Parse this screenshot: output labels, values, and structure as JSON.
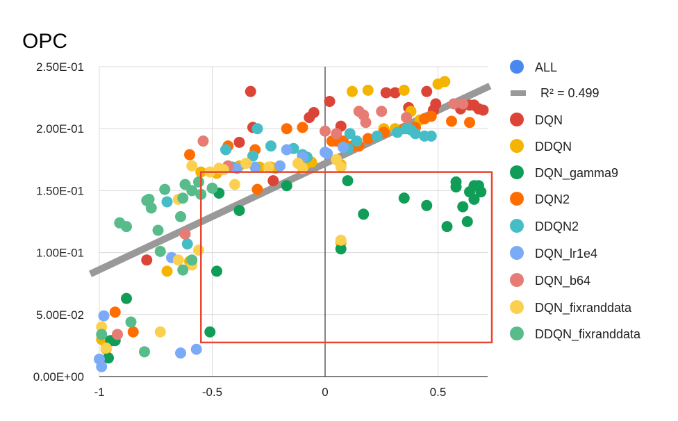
{
  "chart_data": {
    "type": "scatter",
    "title": "OPC",
    "xlabel": "",
    "ylabel": "",
    "xlim": [
      -1,
      0.72
    ],
    "ylim": [
      0,
      0.25
    ],
    "xticks": [
      -1,
      -0.5,
      0,
      0.5
    ],
    "xtick_labels": [
      "-1",
      "-0.5",
      "0",
      "0.5"
    ],
    "yticks": [
      0,
      0.05,
      0.1,
      0.15,
      0.2,
      0.25
    ],
    "ytick_labels": [
      "0.00E+00",
      "5.00E-02",
      "1.00E-01",
      "1.50E-01",
      "2.00E-01",
      "2.50E-01"
    ],
    "grid": true,
    "legend_position": "right",
    "trendline": {
      "label": "R² = 0.499",
      "slope": 0.0857,
      "intercept": 0.1719,
      "color": "#999999"
    },
    "highlight_box": {
      "x": [
        -0.55,
        0.75
      ],
      "y": [
        0.0275,
        0.165
      ],
      "color": "#e8462e"
    },
    "series": [
      {
        "name": "ALL",
        "color": "#4a87f0",
        "points": []
      },
      {
        "name": "DQN",
        "color": "#db4437",
        "points": [
          [
            -0.33,
            0.23
          ],
          [
            -0.07,
            0.209
          ],
          [
            -0.05,
            0.213
          ],
          [
            0.02,
            0.222
          ],
          [
            0.07,
            0.202
          ],
          [
            0.27,
            0.229
          ],
          [
            0.31,
            0.229
          ],
          [
            0.45,
            0.23
          ],
          [
            0.37,
            0.217
          ],
          [
            0.49,
            0.22
          ],
          [
            0.6,
            0.216
          ],
          [
            0.66,
            0.219
          ],
          [
            0.68,
            0.216
          ],
          [
            0.7,
            0.215
          ],
          [
            0.64,
            0.219
          ],
          [
            -0.94,
            0.029
          ],
          [
            -0.98,
            0.029
          ],
          [
            -0.79,
            0.094
          ],
          [
            -0.23,
            0.158
          ],
          [
            -0.38,
            0.189
          ],
          [
            -0.32,
            0.201
          ],
          [
            0.48,
            0.215
          ]
        ]
      },
      {
        "name": "DDQN",
        "color": "#f4b400",
        "points": [
          [
            0.12,
            0.23
          ],
          [
            0.19,
            0.231
          ],
          [
            0.35,
            0.231
          ],
          [
            0.5,
            0.236
          ],
          [
            0.53,
            0.238
          ],
          [
            0.26,
            0.2
          ],
          [
            0.31,
            0.2
          ],
          [
            0.38,
            0.214
          ],
          [
            0.42,
            0.207
          ],
          [
            0.07,
            0.171
          ],
          [
            -0.38,
            0.17
          ],
          [
            -0.29,
            0.169
          ],
          [
            -0.24,
            0.169
          ],
          [
            -0.22,
            0.168
          ],
          [
            -0.1,
            0.17
          ],
          [
            -0.08,
            0.172
          ],
          [
            -0.06,
            0.173
          ],
          [
            -0.55,
            0.165
          ],
          [
            -0.48,
            0.164
          ],
          [
            -0.7,
            0.085
          ],
          [
            -0.6,
            0.093
          ],
          [
            0.07,
            0.108
          ],
          [
            -0.99,
            0.03
          ],
          [
            -0.97,
            0.022
          ]
        ]
      },
      {
        "name": "DQN_gamma9",
        "color": "#0f9d58",
        "points": [
          [
            -0.47,
            0.148
          ],
          [
            -0.38,
            0.134
          ],
          [
            -0.17,
            0.154
          ],
          [
            0.1,
            0.158
          ],
          [
            0.17,
            0.131
          ],
          [
            0.35,
            0.144
          ],
          [
            0.45,
            0.138
          ],
          [
            0.54,
            0.121
          ],
          [
            0.58,
            0.157
          ],
          [
            0.58,
            0.153
          ],
          [
            0.61,
            0.137
          ],
          [
            0.63,
            0.125
          ],
          [
            0.64,
            0.149
          ],
          [
            0.66,
            0.143
          ],
          [
            0.66,
            0.154
          ],
          [
            0.69,
            0.149
          ],
          [
            0.68,
            0.154
          ],
          [
            0.07,
            0.103
          ],
          [
            -0.48,
            0.085
          ],
          [
            -0.51,
            0.036
          ],
          [
            -0.88,
            0.063
          ],
          [
            -0.95,
            0.029
          ],
          [
            -0.93,
            0.029
          ],
          [
            -0.96,
            0.015
          ]
        ]
      },
      {
        "name": "DQN2",
        "color": "#ff6d01",
        "points": [
          [
            -0.6,
            0.179
          ],
          [
            -0.43,
            0.186
          ],
          [
            -0.31,
            0.183
          ],
          [
            -0.17,
            0.2
          ],
          [
            -0.1,
            0.201
          ],
          [
            0.03,
            0.19
          ],
          [
            0.05,
            0.19
          ],
          [
            0.08,
            0.19
          ],
          [
            0.12,
            0.186
          ],
          [
            0.15,
            0.186
          ],
          [
            0.19,
            0.192
          ],
          [
            0.26,
            0.197
          ],
          [
            0.35,
            0.2
          ],
          [
            0.4,
            0.201
          ],
          [
            0.44,
            0.208
          ],
          [
            0.47,
            0.21
          ],
          [
            0.56,
            0.206
          ],
          [
            0.64,
            0.205
          ],
          [
            -0.3,
            0.151
          ],
          [
            -0.93,
            0.052
          ],
          [
            -0.85,
            0.036
          ]
        ]
      },
      {
        "name": "DDQN2",
        "color": "#46bdc6",
        "points": [
          [
            -0.3,
            0.2
          ],
          [
            0.11,
            0.196
          ],
          [
            0.14,
            0.19
          ],
          [
            0.23,
            0.194
          ],
          [
            0.32,
            0.197
          ],
          [
            0.36,
            0.2
          ],
          [
            0.38,
            0.199
          ],
          [
            0.4,
            0.196
          ],
          [
            0.44,
            0.194
          ],
          [
            0.47,
            0.194
          ],
          [
            -0.44,
            0.183
          ],
          [
            -0.41,
            0.169
          ],
          [
            -0.32,
            0.178
          ],
          [
            -0.24,
            0.186
          ],
          [
            -0.14,
            0.184
          ],
          [
            -0.1,
            0.179
          ],
          [
            -0.08,
            0.177
          ],
          [
            0.1,
            0.184
          ],
          [
            -0.7,
            0.141
          ],
          [
            -0.61,
            0.107
          ]
        ]
      },
      {
        "name": "DQN_lr1e4",
        "color": "#7baaf7",
        "points": [
          [
            -0.39,
            0.168
          ],
          [
            -0.31,
            0.169
          ],
          [
            -0.2,
            0.17
          ],
          [
            -0.17,
            0.183
          ],
          [
            -0.1,
            0.177
          ],
          [
            0.0,
            0.181
          ],
          [
            0.01,
            0.18
          ],
          [
            0.08,
            0.185
          ],
          [
            -0.68,
            0.096
          ],
          [
            -0.64,
            0.019
          ],
          [
            -0.57,
            0.022
          ],
          [
            -0.98,
            0.049
          ],
          [
            -1.0,
            0.014
          ],
          [
            -0.99,
            0.008
          ]
        ]
      },
      {
        "name": "DQN_b64",
        "color": "#e67c73",
        "points": [
          [
            -0.54,
            0.19
          ],
          [
            -0.43,
            0.17
          ],
          [
            0.0,
            0.198
          ],
          [
            0.05,
            0.196
          ],
          [
            0.15,
            0.214
          ],
          [
            0.17,
            0.211
          ],
          [
            0.18,
            0.205
          ],
          [
            0.25,
            0.214
          ],
          [
            0.36,
            0.209
          ],
          [
            0.57,
            0.22
          ],
          [
            0.61,
            0.22
          ],
          [
            -0.62,
            0.115
          ],
          [
            -0.92,
            0.034
          ]
        ]
      },
      {
        "name": "DQN_fixranddata",
        "color": "#fcd04f",
        "points": [
          [
            -0.59,
            0.17
          ],
          [
            -0.51,
            0.165
          ],
          [
            -0.47,
            0.168
          ],
          [
            -0.45,
            0.167
          ],
          [
            -0.4,
            0.155
          ],
          [
            -0.35,
            0.172
          ],
          [
            -0.25,
            0.169
          ],
          [
            -0.12,
            0.172
          ],
          [
            -0.1,
            0.168
          ],
          [
            0.05,
            0.175
          ],
          [
            0.07,
            0.169
          ],
          [
            -0.65,
            0.143
          ],
          [
            -0.56,
            0.102
          ],
          [
            -0.65,
            0.094
          ],
          [
            -0.59,
            0.09
          ],
          [
            0.07,
            0.11
          ],
          [
            -0.73,
            0.036
          ],
          [
            -0.99,
            0.04
          ],
          [
            -0.97,
            0.023
          ]
        ]
      },
      {
        "name": "DDQN_fixranddata",
        "color": "#57bb8a",
        "points": [
          [
            -0.91,
            0.124
          ],
          [
            -0.88,
            0.121
          ],
          [
            -0.79,
            0.142
          ],
          [
            -0.78,
            0.143
          ],
          [
            -0.77,
            0.136
          ],
          [
            -0.74,
            0.118
          ],
          [
            -0.71,
            0.151
          ],
          [
            -0.64,
            0.129
          ],
          [
            -0.63,
            0.144
          ],
          [
            -0.62,
            0.155
          ],
          [
            -0.59,
            0.15
          ],
          [
            -0.56,
            0.157
          ],
          [
            -0.55,
            0.147
          ],
          [
            -0.5,
            0.152
          ],
          [
            -0.73,
            0.101
          ],
          [
            -0.59,
            0.094
          ],
          [
            -0.63,
            0.086
          ],
          [
            -0.86,
            0.044
          ],
          [
            -0.8,
            0.02
          ],
          [
            -0.99,
            0.034
          ]
        ]
      }
    ]
  }
}
